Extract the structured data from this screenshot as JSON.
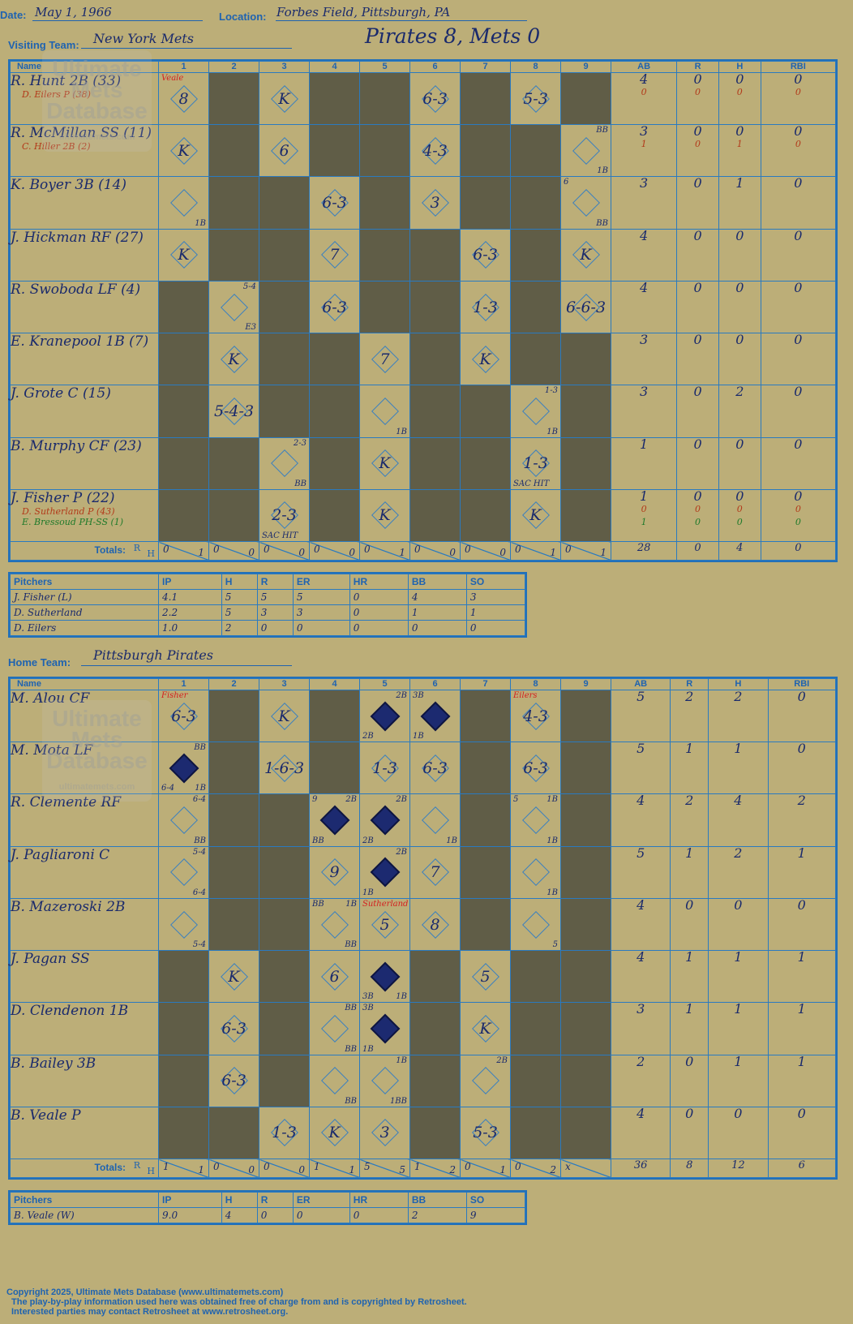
{
  "header": {
    "date_label": "Date:",
    "date": "May 1, 1966",
    "location_label": "Location:",
    "location": "Forbes Field, Pittsburgh, PA",
    "score": "Pirates 8, Mets 0"
  },
  "visiting": {
    "team_label": "Visiting Team:",
    "team": "New York Mets"
  },
  "home": {
    "team_label": "Home Team:",
    "team": "Pittsburgh Pirates"
  },
  "cols": {
    "name": "Name",
    "innings": [
      "1",
      "2",
      "3",
      "4",
      "5",
      "6",
      "7",
      "8",
      "9"
    ],
    "ab": "AB",
    "r": "R",
    "h": "H",
    "rbi": "RBI",
    "totals": "Totals:",
    "r_short": "R",
    "h_short": "H"
  },
  "watermark": {
    "line1": "Ultimate",
    "line2": "Mets",
    "line3": "Database",
    "line4": "ultimatemets.com"
  },
  "visiting_batters": [
    {
      "name": "R. Hunt 2B (33)",
      "subs": [
        "D. Eilers P (38)"
      ],
      "stats": [
        "4",
        "0",
        "0",
        "0"
      ],
      "sub_stats": [
        [
          "0",
          "0",
          "0",
          "0"
        ]
      ]
    },
    {
      "name": "R. McMillan SS (11)",
      "subs": [
        "C. Hiller 2B (2)"
      ],
      "stats": [
        "3",
        "0",
        "0",
        "0"
      ],
      "sub_stats": [
        [
          "1",
          "0",
          "1",
          "0"
        ]
      ]
    },
    {
      "name": "K. Boyer 3B (14)",
      "subs": [],
      "stats": [
        "3",
        "0",
        "1",
        "0"
      ],
      "sub_stats": []
    },
    {
      "name": "J. Hickman RF (27)",
      "subs": [],
      "stats": [
        "4",
        "0",
        "0",
        "0"
      ],
      "sub_stats": []
    },
    {
      "name": "R. Swoboda LF (4)",
      "subs": [],
      "stats": [
        "4",
        "0",
        "0",
        "0"
      ],
      "sub_stats": []
    },
    {
      "name": "E. Kranepool 1B (7)",
      "subs": [],
      "stats": [
        "3",
        "0",
        "0",
        "0"
      ],
      "sub_stats": []
    },
    {
      "name": "J. Grote C (15)",
      "subs": [],
      "stats": [
        "3",
        "0",
        "2",
        "0"
      ],
      "sub_stats": []
    },
    {
      "name": "B. Murphy CF (23)",
      "subs": [],
      "stats": [
        "1",
        "0",
        "0",
        "0"
      ],
      "sub_stats": []
    },
    {
      "name": "J. Fisher P (22)",
      "subs": [
        "D. Sutherland P (43)",
        "E. Bressoud PH-SS (1)"
      ],
      "stats": [
        "1",
        "0",
        "0",
        "0"
      ],
      "sub_stats": [
        [
          "0",
          "0",
          "0",
          "0"
        ],
        [
          "1",
          "0",
          "0",
          "0"
        ]
      ]
    }
  ],
  "visiting_totals": {
    "innings": [
      [
        "0",
        "1"
      ],
      [
        "0",
        "0"
      ],
      [
        "0",
        "0"
      ],
      [
        "0",
        "0"
      ],
      [
        "0",
        "1"
      ],
      [
        "0",
        "0"
      ],
      [
        "0",
        "0"
      ],
      [
        "0",
        "1"
      ],
      [
        "0",
        "1"
      ]
    ],
    "ab": "28",
    "r": "0",
    "h": "4",
    "rbi": "0"
  },
  "visiting_pitchers": {
    "header": [
      "Pitchers",
      "IP",
      "H",
      "R",
      "ER",
      "HR",
      "BB",
      "SO"
    ],
    "rows": [
      [
        "J. Fisher (L)",
        "4.1",
        "5",
        "5",
        "5",
        "0",
        "4",
        "3"
      ],
      [
        "D. Sutherland",
        "2.2",
        "5",
        "3",
        "3",
        "0",
        "1",
        "1"
      ],
      [
        "D. Eilers",
        "1.0",
        "2",
        "0",
        "0",
        "0",
        "0",
        "0"
      ]
    ]
  },
  "home_batters": [
    {
      "name": "M. Alou CF",
      "stats": [
        "5",
        "2",
        "2",
        "0"
      ]
    },
    {
      "name": "M. Mota LF",
      "stats": [
        "5",
        "1",
        "1",
        "0"
      ]
    },
    {
      "name": "R. Clemente RF",
      "stats": [
        "4",
        "2",
        "4",
        "2"
      ]
    },
    {
      "name": "J. Pagliaroni C",
      "stats": [
        "5",
        "1",
        "2",
        "1"
      ]
    },
    {
      "name": "B. Mazeroski 2B",
      "stats": [
        "4",
        "0",
        "0",
        "0"
      ]
    },
    {
      "name": "J. Pagan SS",
      "stats": [
        "4",
        "1",
        "1",
        "1"
      ]
    },
    {
      "name": "D. Clendenon 1B",
      "stats": [
        "3",
        "1",
        "1",
        "1"
      ]
    },
    {
      "name": "B. Bailey 3B",
      "stats": [
        "2",
        "0",
        "1",
        "1"
      ]
    },
    {
      "name": "B. Veale P",
      "stats": [
        "4",
        "0",
        "0",
        "0"
      ]
    }
  ],
  "home_totals": {
    "innings": [
      [
        "1",
        "1"
      ],
      [
        "0",
        "0"
      ],
      [
        "0",
        "0"
      ],
      [
        "1",
        "1"
      ],
      [
        "5",
        "5"
      ],
      [
        "1",
        "2"
      ],
      [
        "0",
        "1"
      ],
      [
        "0",
        "2"
      ],
      [
        "x",
        ""
      ]
    ],
    "ab": "36",
    "r": "8",
    "h": "12",
    "rbi": "6"
  },
  "home_pitchers": {
    "header": [
      "Pitchers",
      "IP",
      "H",
      "R",
      "ER",
      "HR",
      "BB",
      "SO"
    ],
    "rows": [
      [
        "B. Veale (W)",
        "9.0",
        "4",
        "0",
        "0",
        "0",
        "2",
        "9"
      ]
    ]
  },
  "footer": {
    "line1": "Copyright 2025, Ultimate Mets Database (www.ultimatemets.com)",
    "line2": "The play-by-play information used here was obtained free of charge from and is copyrighted by Retrosheet.",
    "line3": "Interested parties may contact Retrosheet at www.retrosheet.org."
  },
  "visiting_grid": [
    [
      {
        "t": "8",
        "n": {
          "tl": "Veale"
        }
      },
      {
        "d": 1
      },
      {
        "t": "K"
      },
      {
        "d": 1
      },
      {
        "d": 1
      },
      {
        "t": "6-3"
      },
      {
        "d": 1
      },
      {
        "t": "5-3"
      },
      {
        "d": 1
      }
    ],
    [
      {
        "t": "K"
      },
      {
        "d": 1
      },
      {
        "t": "6"
      },
      {
        "d": 1
      },
      {
        "d": 1
      },
      {
        "t": "4-3"
      },
      {
        "d": 1
      },
      {
        "d": 1
      },
      {
        "t": "",
        "n": {
          "tr": "BB",
          "br": "1B"
        }
      }
    ],
    [
      {
        "t": "",
        "n": {
          "br": "1B"
        }
      },
      {
        "d": 1
      },
      {
        "d": 1
      },
      {
        "t": "6-3"
      },
      {
        "d": 1
      },
      {
        "t": "3"
      },
      {
        "d": 1
      },
      {
        "d": 1
      },
      {
        "t": "",
        "n": {
          "tl": "6",
          "br": "BB"
        }
      }
    ],
    [
      {
        "t": "K"
      },
      {
        "d": 1
      },
      {
        "d": 1
      },
      {
        "t": "7"
      },
      {
        "d": 1
      },
      {
        "d": 1
      },
      {
        "t": "6-3"
      },
      {
        "d": 1
      },
      {
        "t": "K"
      }
    ],
    [
      {
        "d": 1
      },
      {
        "t": "",
        "n": {
          "tr": "5-4",
          "br": "E3"
        }
      },
      {
        "d": 1
      },
      {
        "t": "6-3"
      },
      {
        "d": 1
      },
      {
        "d": 1
      },
      {
        "t": "1-3"
      },
      {
        "d": 1
      },
      {
        "t": "6-6-3"
      }
    ],
    [
      {
        "d": 1
      },
      {
        "t": "K"
      },
      {
        "d": 1
      },
      {
        "d": 1
      },
      {
        "t": "7"
      },
      {
        "d": 1
      },
      {
        "t": "K"
      },
      {
        "d": 1
      },
      {
        "d": 1
      }
    ],
    [
      {
        "d": 1
      },
      {
        "t": "5-4-3"
      },
      {
        "d": 1
      },
      {
        "d": 1
      },
      {
        "t": "",
        "n": {
          "br": "1B"
        }
      },
      {
        "d": 1
      },
      {
        "d": 1
      },
      {
        "t": "",
        "n": {
          "tr": "1-3",
          "br": "1B"
        }
      },
      {
        "d": 1
      }
    ],
    [
      {
        "d": 1
      },
      {
        "d": 1
      },
      {
        "t": "",
        "n": {
          "tr": "2-3",
          "br": "BB"
        }
      },
      {
        "d": 1
      },
      {
        "t": "K"
      },
      {
        "d": 1
      },
      {
        "d": 1
      },
      {
        "t": "1-3",
        "n": {
          "bl": "SAC HIT"
        }
      },
      {
        "d": 1
      }
    ],
    [
      {
        "d": 1
      },
      {
        "d": 1
      },
      {
        "t": "2-3",
        "n": {
          "bl": "SAC HIT"
        }
      },
      {
        "d": 1
      },
      {
        "t": "K"
      },
      {
        "d": 1
      },
      {
        "d": 1
      },
      {
        "t": "K"
      },
      {
        "d": 1
      }
    ]
  ],
  "home_grid": [
    [
      {
        "t": "6-3",
        "n": {
          "tl": "Fisher"
        }
      },
      {
        "d": 1
      },
      {
        "t": "K"
      },
      {
        "d": 1
      },
      {
        "r": 1,
        "n": {
          "tr": "2B",
          "bl": "2B"
        }
      },
      {
        "r": 1,
        "n": {
          "tl": "3B",
          "bl": "1B"
        }
      },
      {
        "d": 1
      },
      {
        "t": "4-3",
        "n": {
          "tl": "Eilers"
        }
      },
      {
        "d": 1
      }
    ],
    [
      {
        "r": 1,
        "n": {
          "tr": "BB",
          "bl": "6-4",
          "br": "1B"
        }
      },
      {
        "d": 1
      },
      {
        "t": "1-6-3"
      },
      {
        "d": 1
      },
      {
        "t": "1-3"
      },
      {
        "t": "6-3"
      },
      {
        "d": 1
      },
      {
        "t": "6-3"
      },
      {
        "d": 1
      }
    ],
    [
      {
        "t": "",
        "n": {
          "tr": "6-4",
          "br": "BB"
        }
      },
      {
        "d": 1
      },
      {
        "d": 1
      },
      {
        "r": 1,
        "n": {
          "tl": "9",
          "tr": "2B",
          "bl": "BB"
        }
      },
      {
        "r": 1,
        "n": {
          "tr": "2B",
          "bl": "2B"
        }
      },
      {
        "t": "",
        "n": {
          "br": "1B"
        }
      },
      {
        "d": 1
      },
      {
        "t": "",
        "n": {
          "tl": "5",
          "tr": "1B",
          "br": "1B"
        }
      },
      {
        "d": 1
      }
    ],
    [
      {
        "t": "",
        "n": {
          "tr": "5-4",
          "br": "6-4"
        }
      },
      {
        "d": 1
      },
      {
        "d": 1
      },
      {
        "t": "9"
      },
      {
        "r": 1,
        "n": {
          "tr": "2B",
          "bl": "1B"
        }
      },
      {
        "t": "7"
      },
      {
        "d": 1
      },
      {
        "t": "",
        "n": {
          "br": "1B"
        }
      },
      {
        "d": 1
      }
    ],
    [
      {
        "t": "",
        "n": {
          "br": "5-4"
        }
      },
      {
        "d": 1
      },
      {
        "d": 1
      },
      {
        "t": "",
        "n": {
          "tl": "BB",
          "tr": "1B",
          "br": "BB"
        }
      },
      {
        "t": "5",
        "n": {
          "tl": "Sutherland"
        }
      },
      {
        "t": "8"
      },
      {
        "d": 1
      },
      {
        "t": "",
        "n": {
          "br": "5"
        }
      },
      {
        "d": 1
      }
    ],
    [
      {
        "d": 1
      },
      {
        "t": "K"
      },
      {
        "d": 1
      },
      {
        "t": "6"
      },
      {
        "r": 1,
        "n": {
          "bl": "3B",
          "br": "1B"
        }
      },
      {
        "d": 1
      },
      {
        "t": "5"
      },
      {
        "d": 1
      },
      {
        "d": 1
      }
    ],
    [
      {
        "d": 1
      },
      {
        "t": "6-3"
      },
      {
        "d": 1
      },
      {
        "t": "",
        "n": {
          "tr": "BB",
          "br": "BB"
        }
      },
      {
        "r": 1,
        "n": {
          "tl": "3B",
          "bl": "1B"
        }
      },
      {
        "d": 1
      },
      {
        "t": "K"
      },
      {
        "d": 1
      },
      {
        "d": 1
      }
    ],
    [
      {
        "d": 1
      },
      {
        "t": "6-3"
      },
      {
        "d": 1
      },
      {
        "t": "",
        "n": {
          "br": "BB"
        }
      },
      {
        "t": "",
        "n": {
          "tr": "1B",
          "br": "1BB"
        }
      },
      {
        "d": 1
      },
      {
        "t": "",
        "n": {
          "tr": "2B"
        }
      },
      {
        "d": 1
      },
      {
        "d": 1
      }
    ],
    [
      {
        "d": 1
      },
      {
        "d": 1
      },
      {
        "t": "1-3"
      },
      {
        "t": "K"
      },
      {
        "t": "3"
      },
      {
        "d": 1
      },
      {
        "t": "5-3"
      },
      {
        "d": 1
      },
      {
        "d": 1
      }
    ]
  ]
}
